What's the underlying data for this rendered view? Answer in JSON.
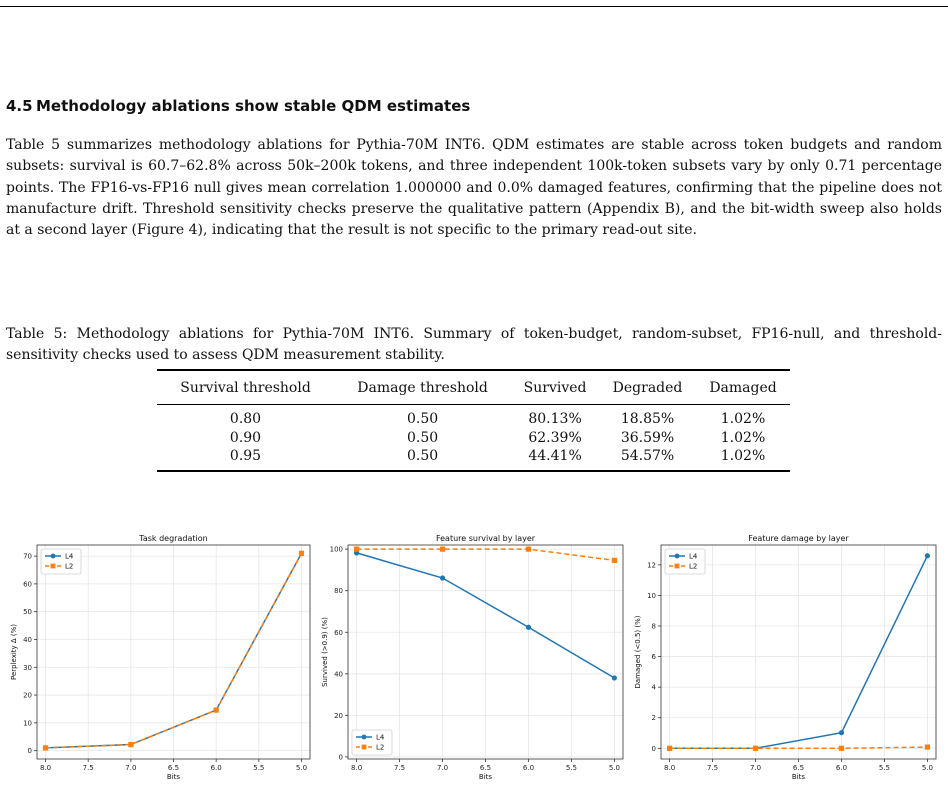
{
  "section": {
    "number": "4.5",
    "title": "Methodology ablations show stable QDM estimates"
  },
  "paragraph": "Table 5 summarizes methodology ablations for Pythia-70M INT6. QDM estimates are stable across token budgets and random subsets: survival is 60.7–62.8% across 50k–200k tokens, and three independent 100k-token subsets vary by only 0.71 percentage points. The FP16-vs-FP16 null gives mean correlation 1.000000 and 0.0% damaged features, confirming that the pipeline does not manufacture drift. Threshold sensitivity checks preserve the qualitative pattern (Appendix B), and the bit-width sweep also holds at a second layer (Figure 4), indicating that the result is not specific to the primary read-out site.",
  "table_caption": "Table 5: Methodology ablations for Pythia-70M INT6. Summary of token-budget, random-subset, FP16-null, and threshold-sensitivity checks used to assess QDM measurement stability.",
  "table": {
    "headers": [
      "Survival threshold",
      "Damage threshold",
      "Survived",
      "Degraded",
      "Damaged"
    ],
    "rows": [
      [
        "0.80",
        "0.50",
        "80.13%",
        "18.85%",
        "1.02%"
      ],
      [
        "0.90",
        "0.50",
        "62.39%",
        "36.59%",
        "1.02%"
      ],
      [
        "0.95",
        "0.50",
        "44.41%",
        "54.57%",
        "1.02%"
      ]
    ]
  },
  "colors": {
    "L4": "#1f77b4",
    "L2": "#ff7f0e"
  },
  "chart_data": [
    {
      "type": "line",
      "title": "Task degradation",
      "xlabel": "Bits",
      "ylabel": "Perplexity Δ (%)",
      "x": [
        8.0,
        7.0,
        6.0,
        5.0
      ],
      "xlim": [
        8.1,
        4.9
      ],
      "ylim": [
        -3,
        74
      ],
      "xticks": [
        "8.0",
        "7.5",
        "7.0",
        "6.5",
        "6.0",
        "5.5",
        "5.0"
      ],
      "yticks": [
        "0",
        "10",
        "20",
        "30",
        "40",
        "50",
        "60",
        "70"
      ],
      "legend": "top-left",
      "grid": true,
      "series": [
        {
          "name": "L4",
          "values": [
            1.0,
            2.2,
            14.6,
            71.0
          ]
        },
        {
          "name": "L2",
          "values": [
            1.0,
            2.2,
            14.6,
            71.0
          ]
        }
      ]
    },
    {
      "type": "line",
      "title": "Feature survival by layer",
      "xlabel": "Bits",
      "ylabel": "Survived (>0.9) (%)",
      "x": [
        8.0,
        7.0,
        6.0,
        5.0
      ],
      "xlim": [
        8.1,
        4.9
      ],
      "ylim": [
        -1,
        102
      ],
      "xticks": [
        "8.0",
        "7.5",
        "7.0",
        "6.5",
        "6.0",
        "5.5",
        "5.0"
      ],
      "yticks": [
        "0",
        "20",
        "40",
        "60",
        "80",
        "100"
      ],
      "legend": "bottom-left",
      "grid": true,
      "series": [
        {
          "name": "L4",
          "values": [
            98.2,
            86.1,
            62.4,
            38.0
          ]
        },
        {
          "name": "L2",
          "values": [
            100.0,
            100.0,
            100.0,
            94.6
          ]
        }
      ]
    },
    {
      "type": "line",
      "title": "Feature damage by layer",
      "xlabel": "Bits",
      "ylabel": "Damaged (<0.5) (%)",
      "x": [
        8.0,
        7.0,
        6.0,
        5.0
      ],
      "xlim": [
        8.1,
        4.9
      ],
      "ylim": [
        -0.7,
        13.3
      ],
      "xticks": [
        "8.0",
        "7.5",
        "7.0",
        "6.5",
        "6.0",
        "5.5",
        "5.0"
      ],
      "yticks": [
        "0",
        "2",
        "4",
        "6",
        "8",
        "10",
        "12"
      ],
      "legend": "top-left",
      "grid": true,
      "series": [
        {
          "name": "L4",
          "values": [
            0.0,
            0.0,
            1.02,
            12.6
          ]
        },
        {
          "name": "L2",
          "values": [
            0.0,
            0.0,
            0.0,
            0.08
          ]
        }
      ]
    }
  ]
}
